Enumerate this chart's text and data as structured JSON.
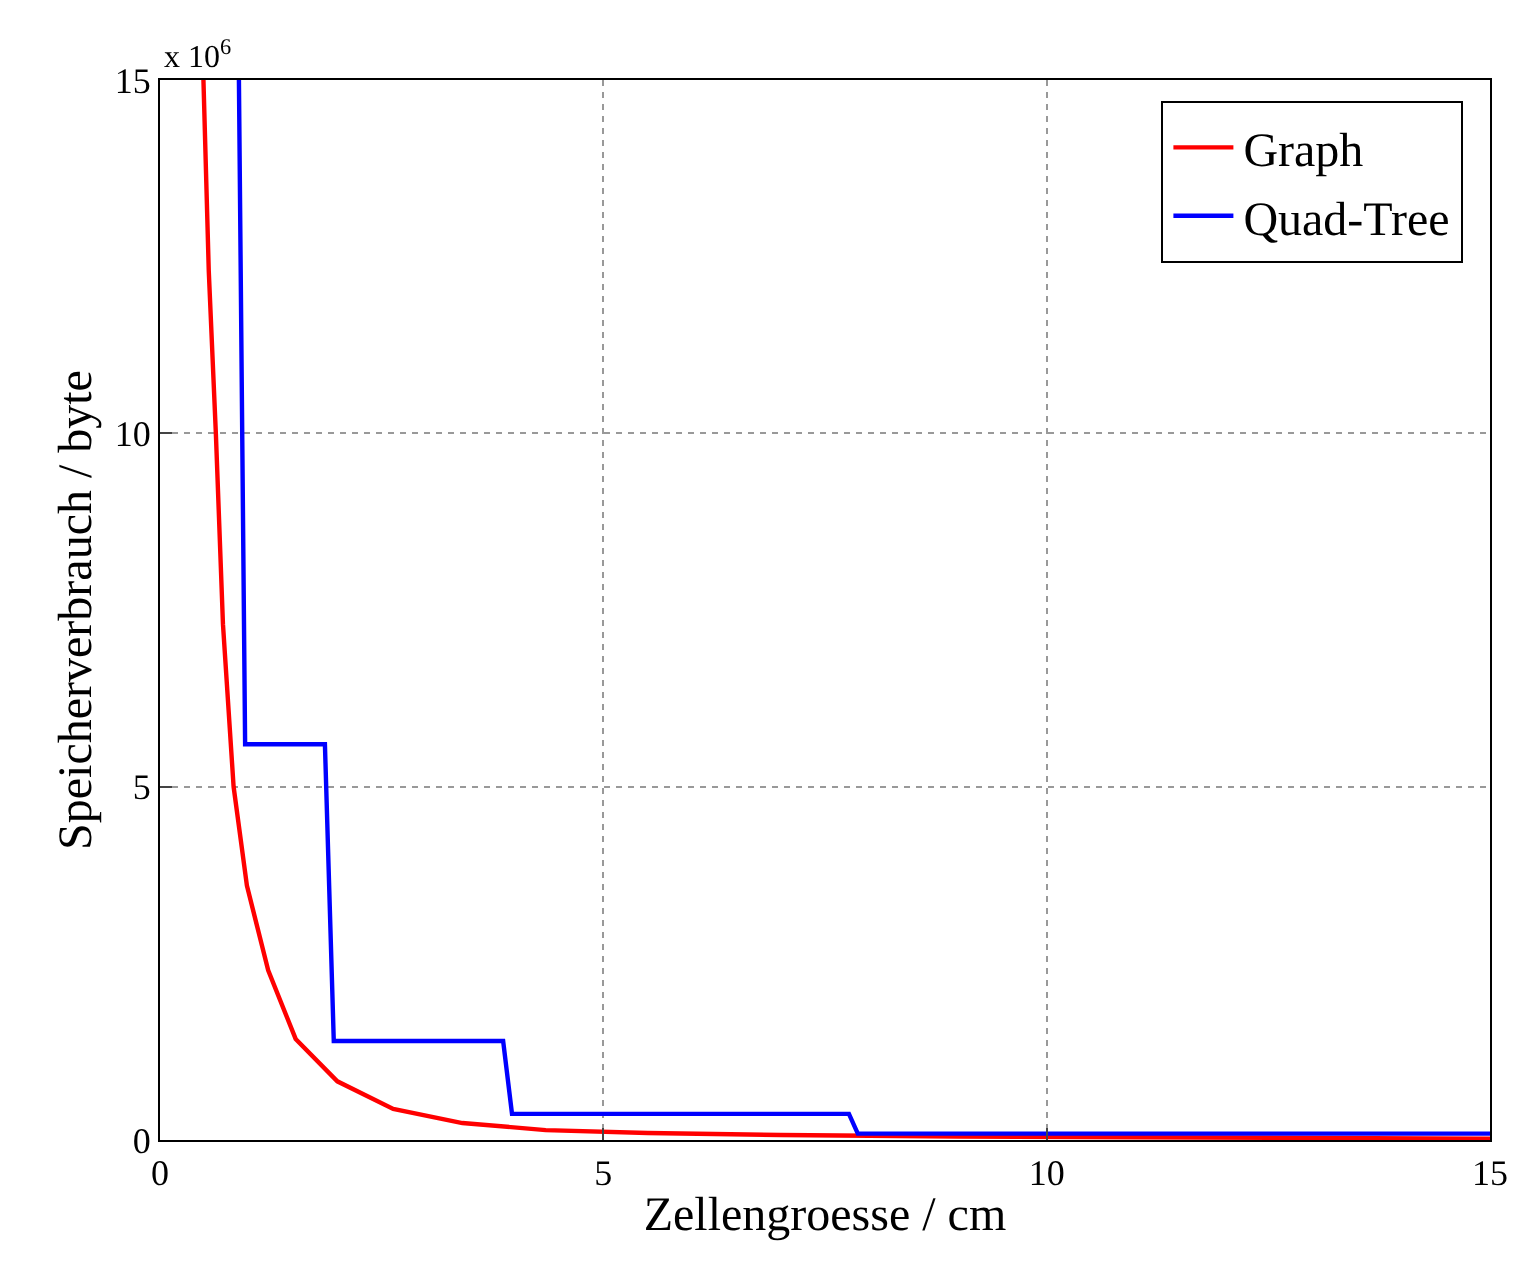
{
  "chart_data": {
    "type": "line",
    "xlabel": "Zellengroesse / cm",
    "ylabel": "Speicherverbrauch / byte",
    "annotations": [
      "x 10$^{6}$"
    ],
    "series": [
      {
        "name": "Graph",
        "color": "#ff0000",
        "x": [
          0.49,
          0.55,
          0.63,
          0.71,
          0.83,
          0.98,
          1.22,
          1.53,
          2.0,
          2.63,
          3.41,
          4.35,
          5.5,
          7.0,
          9.0,
          11.0,
          13.0,
          15.0
        ],
        "values": [
          15,
          12.3,
          10.0,
          7.3,
          5.0,
          3.6,
          2.4,
          1.43,
          0.83,
          0.44,
          0.24,
          0.14,
          0.1,
          0.07,
          0.05,
          0.04,
          0.03,
          0.02
        ]
      },
      {
        "name": "Quad-Tree",
        "color": "#0000ff",
        "x": [
          0.89,
          0.96,
          1.86,
          1.96,
          3.87,
          3.97,
          7.77,
          7.87,
          15.0
        ],
        "values": [
          15,
          5.6,
          5.6,
          1.4,
          1.4,
          0.37,
          0.37,
          0.09,
          0.09
        ]
      }
    ],
    "xlim": [
      0,
      15
    ],
    "xticks": [
      0,
      5,
      10,
      15
    ],
    "ylim": [
      0,
      15
    ],
    "yticks": [
      0,
      5,
      10,
      15
    ],
    "grid": true,
    "legend": "top right",
    "line_style": "solid",
    "marker": "none"
  }
}
